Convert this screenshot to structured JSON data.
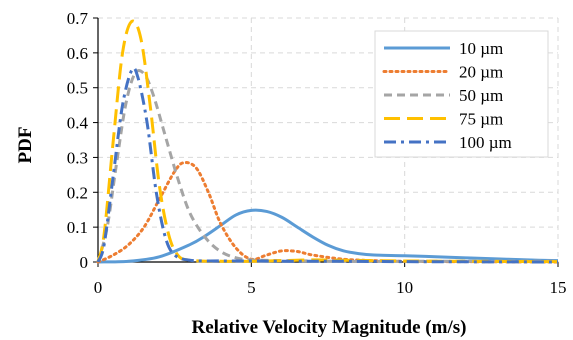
{
  "chart_data": {
    "type": "line",
    "title": "",
    "xlabel": "Relative Velocity Magnitude (m/s)",
    "ylabel": "PDF",
    "xlim": [
      0,
      15
    ],
    "ylim": [
      0,
      0.7
    ],
    "x_ticks": [
      "0",
      "5",
      "10",
      "15"
    ],
    "y_ticks": [
      "0",
      "0.1",
      "0.2",
      "0.3",
      "0.4",
      "0.5",
      "0.6",
      "0.7"
    ],
    "grid": true,
    "legend_position": "top-right",
    "series": [
      {
        "name": "10 µm",
        "color": "#5b9bd5",
        "dash": "solid",
        "points": [
          [
            0,
            0
          ],
          [
            1,
            0.002
          ],
          [
            2,
            0.015
          ],
          [
            3,
            0.05
          ],
          [
            3.5,
            0.075
          ],
          [
            4,
            0.105
          ],
          [
            4.5,
            0.135
          ],
          [
            5,
            0.148
          ],
          [
            5.5,
            0.145
          ],
          [
            6,
            0.128
          ],
          [
            6.5,
            0.1
          ],
          [
            7,
            0.072
          ],
          [
            7.5,
            0.048
          ],
          [
            8,
            0.032
          ],
          [
            8.5,
            0.024
          ],
          [
            9,
            0.02
          ],
          [
            10,
            0.018
          ],
          [
            11,
            0.015
          ],
          [
            12,
            0.012
          ],
          [
            13,
            0.009
          ],
          [
            14,
            0.006
          ],
          [
            15,
            0.004
          ]
        ]
      },
      {
        "name": "20 µm",
        "color": "#ed7d31",
        "dash": "dot",
        "points": [
          [
            0,
            0
          ],
          [
            0.5,
            0.02
          ],
          [
            1,
            0.05
          ],
          [
            1.5,
            0.1
          ],
          [
            2,
            0.18
          ],
          [
            2.5,
            0.26
          ],
          [
            2.8,
            0.285
          ],
          [
            3.2,
            0.27
          ],
          [
            3.6,
            0.2
          ],
          [
            4,
            0.11
          ],
          [
            4.5,
            0.04
          ],
          [
            5,
            0.008
          ],
          [
            5.5,
            0.02
          ],
          [
            6,
            0.032
          ],
          [
            6.5,
            0.03
          ],
          [
            7,
            0.02
          ],
          [
            8,
            0.008
          ],
          [
            9,
            0.004
          ],
          [
            10,
            0.002
          ],
          [
            12,
            0.001
          ],
          [
            15,
            0
          ]
        ]
      },
      {
        "name": "50 µm",
        "color": "#a5a5a5",
        "dash": "dash",
        "points": [
          [
            0,
            0
          ],
          [
            0.3,
            0.1
          ],
          [
            0.6,
            0.28
          ],
          [
            0.9,
            0.45
          ],
          [
            1.2,
            0.54
          ],
          [
            1.5,
            0.54
          ],
          [
            1.8,
            0.48
          ],
          [
            2.2,
            0.36
          ],
          [
            2.6,
            0.24
          ],
          [
            3,
            0.14
          ],
          [
            3.5,
            0.07
          ],
          [
            4,
            0.03
          ],
          [
            4.5,
            0.012
          ],
          [
            5,
            0.006
          ],
          [
            6,
            0.004
          ],
          [
            7,
            0.003
          ],
          [
            8,
            0.002
          ],
          [
            10,
            0.002
          ],
          [
            12,
            0.002
          ],
          [
            15,
            0.002
          ]
        ]
      },
      {
        "name": "75 µm",
        "color": "#ffc000",
        "dash": "longdash",
        "points": [
          [
            0,
            0
          ],
          [
            0.2,
            0.08
          ],
          [
            0.5,
            0.35
          ],
          [
            0.8,
            0.6
          ],
          [
            1.1,
            0.69
          ],
          [
            1.4,
            0.64
          ],
          [
            1.7,
            0.45
          ],
          [
            2,
            0.22
          ],
          [
            2.3,
            0.08
          ],
          [
            2.6,
            0.02
          ],
          [
            3,
            0.005
          ],
          [
            4,
            0.002
          ],
          [
            5,
            0.002
          ],
          [
            6,
            0.004
          ],
          [
            7,
            0.006
          ],
          [
            8,
            0.005
          ],
          [
            9,
            0.004
          ],
          [
            10,
            0.003
          ],
          [
            12,
            0.002
          ],
          [
            15,
            0.001
          ]
        ]
      },
      {
        "name": "100 µm",
        "color": "#4472c4",
        "dash": "dashdot",
        "points": [
          [
            0,
            0
          ],
          [
            0.2,
            0.05
          ],
          [
            0.5,
            0.25
          ],
          [
            0.8,
            0.45
          ],
          [
            1.1,
            0.55
          ],
          [
            1.3,
            0.53
          ],
          [
            1.6,
            0.4
          ],
          [
            1.9,
            0.2
          ],
          [
            2.2,
            0.07
          ],
          [
            2.5,
            0.02
          ],
          [
            3,
            0.005
          ],
          [
            4,
            0.003
          ],
          [
            5,
            0.003
          ],
          [
            6,
            0.002
          ],
          [
            8,
            0.002
          ],
          [
            10,
            0.001
          ],
          [
            15,
            0
          ]
        ]
      }
    ]
  }
}
